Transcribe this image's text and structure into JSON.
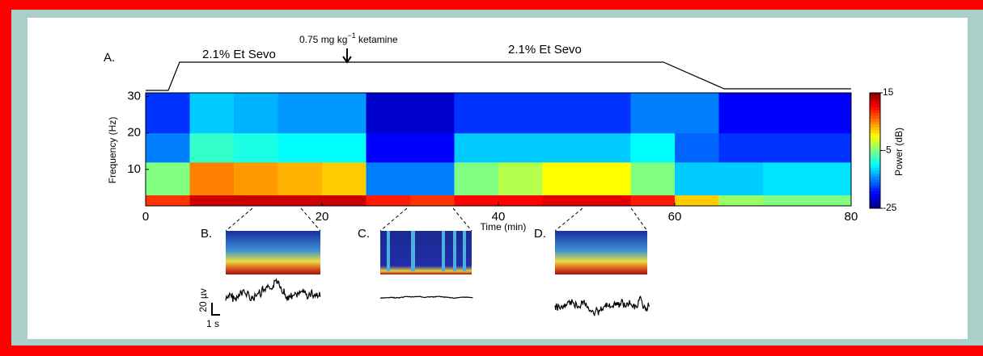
{
  "chart_data": {
    "type": "spectrogram",
    "panel_label": "A.",
    "sevo_left": "2.1% Et Sevo",
    "sevo_right": "2.1% Et Sevo",
    "ketamine_dose": "0.75 mg kg",
    "ketamine_exp": "−1",
    "ketamine_drug": " ketamine",
    "x_label": "Time (min)",
    "y_label": "Frequency (Hz)",
    "colorbar_label": "Power (dB)",
    "xlim": [
      0,
      80
    ],
    "xticks": [
      0,
      20,
      40,
      60,
      80
    ],
    "ylim": [
      0,
      31
    ],
    "yticks": [
      10,
      20,
      30
    ],
    "clim": [
      -25,
      15
    ],
    "cticks": [
      -25,
      -5,
      15
    ],
    "time_bins": [
      0,
      5,
      10,
      15,
      20,
      25,
      30,
      35,
      40,
      45,
      50,
      55,
      60,
      65,
      70,
      75,
      80
    ],
    "frequency_bins": [
      0,
      3,
      12,
      20,
      31
    ],
    "power": [
      [
        8,
        12,
        12,
        12,
        12,
        9,
        8,
        10,
        10,
        11,
        11,
        9,
        2,
        -4,
        -5,
        -5
      ],
      [
        -5,
        5,
        4,
        3,
        2,
        -15,
        -15,
        -5,
        -3,
        0,
        0,
        -5,
        -12,
        -12,
        -11,
        -11
      ],
      [
        -15,
        -8,
        -9,
        -10,
        -10,
        -20,
        -20,
        -12,
        -12,
        -12,
        -12,
        -10,
        -16,
        -18,
        -18,
        -18
      ],
      [
        -18,
        -12,
        -13,
        -14,
        -14,
        -22,
        -22,
        -18,
        -18,
        -18,
        -18,
        -15,
        -15,
        -20,
        -20,
        -20
      ]
    ],
    "insets": [
      "B.",
      "C.",
      "D."
    ],
    "scale_amplitude": "20 µv",
    "scale_time": "1 s"
  }
}
